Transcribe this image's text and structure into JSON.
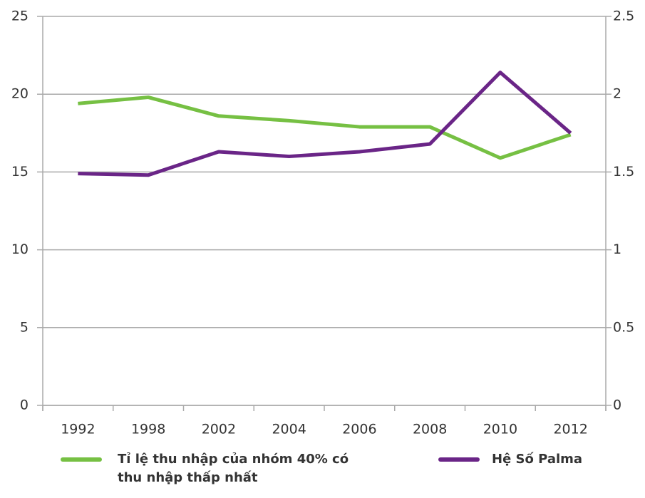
{
  "chart_data": {
    "type": "line",
    "categories": [
      "1992",
      "1998",
      "2002",
      "2004",
      "2006",
      "2008",
      "2010",
      "2012"
    ],
    "series": [
      {
        "name": "Tỉ lệ thu nhập của nhóm 40% có thu nhập thấp nhất",
        "color": "#76c043",
        "values": [
          19.4,
          19.8,
          18.6,
          18.3,
          17.9,
          17.9,
          15.9,
          17.4
        ]
      },
      {
        "name": "Hệ Số Palma",
        "color": "#6a2587",
        "axis": "y2",
        "values": [
          1.49,
          1.48,
          1.63,
          1.6,
          1.63,
          1.68,
          2.14,
          1.75
        ]
      }
    ],
    "ylim": [
      0,
      25
    ],
    "yticks": [
      0,
      5,
      10,
      15,
      20,
      25
    ],
    "y2lim": [
      0,
      2.5
    ],
    "y2ticks": [
      0,
      0.5,
      1,
      1.5,
      2,
      2.5
    ],
    "grid": true,
    "legend": "bottom"
  }
}
